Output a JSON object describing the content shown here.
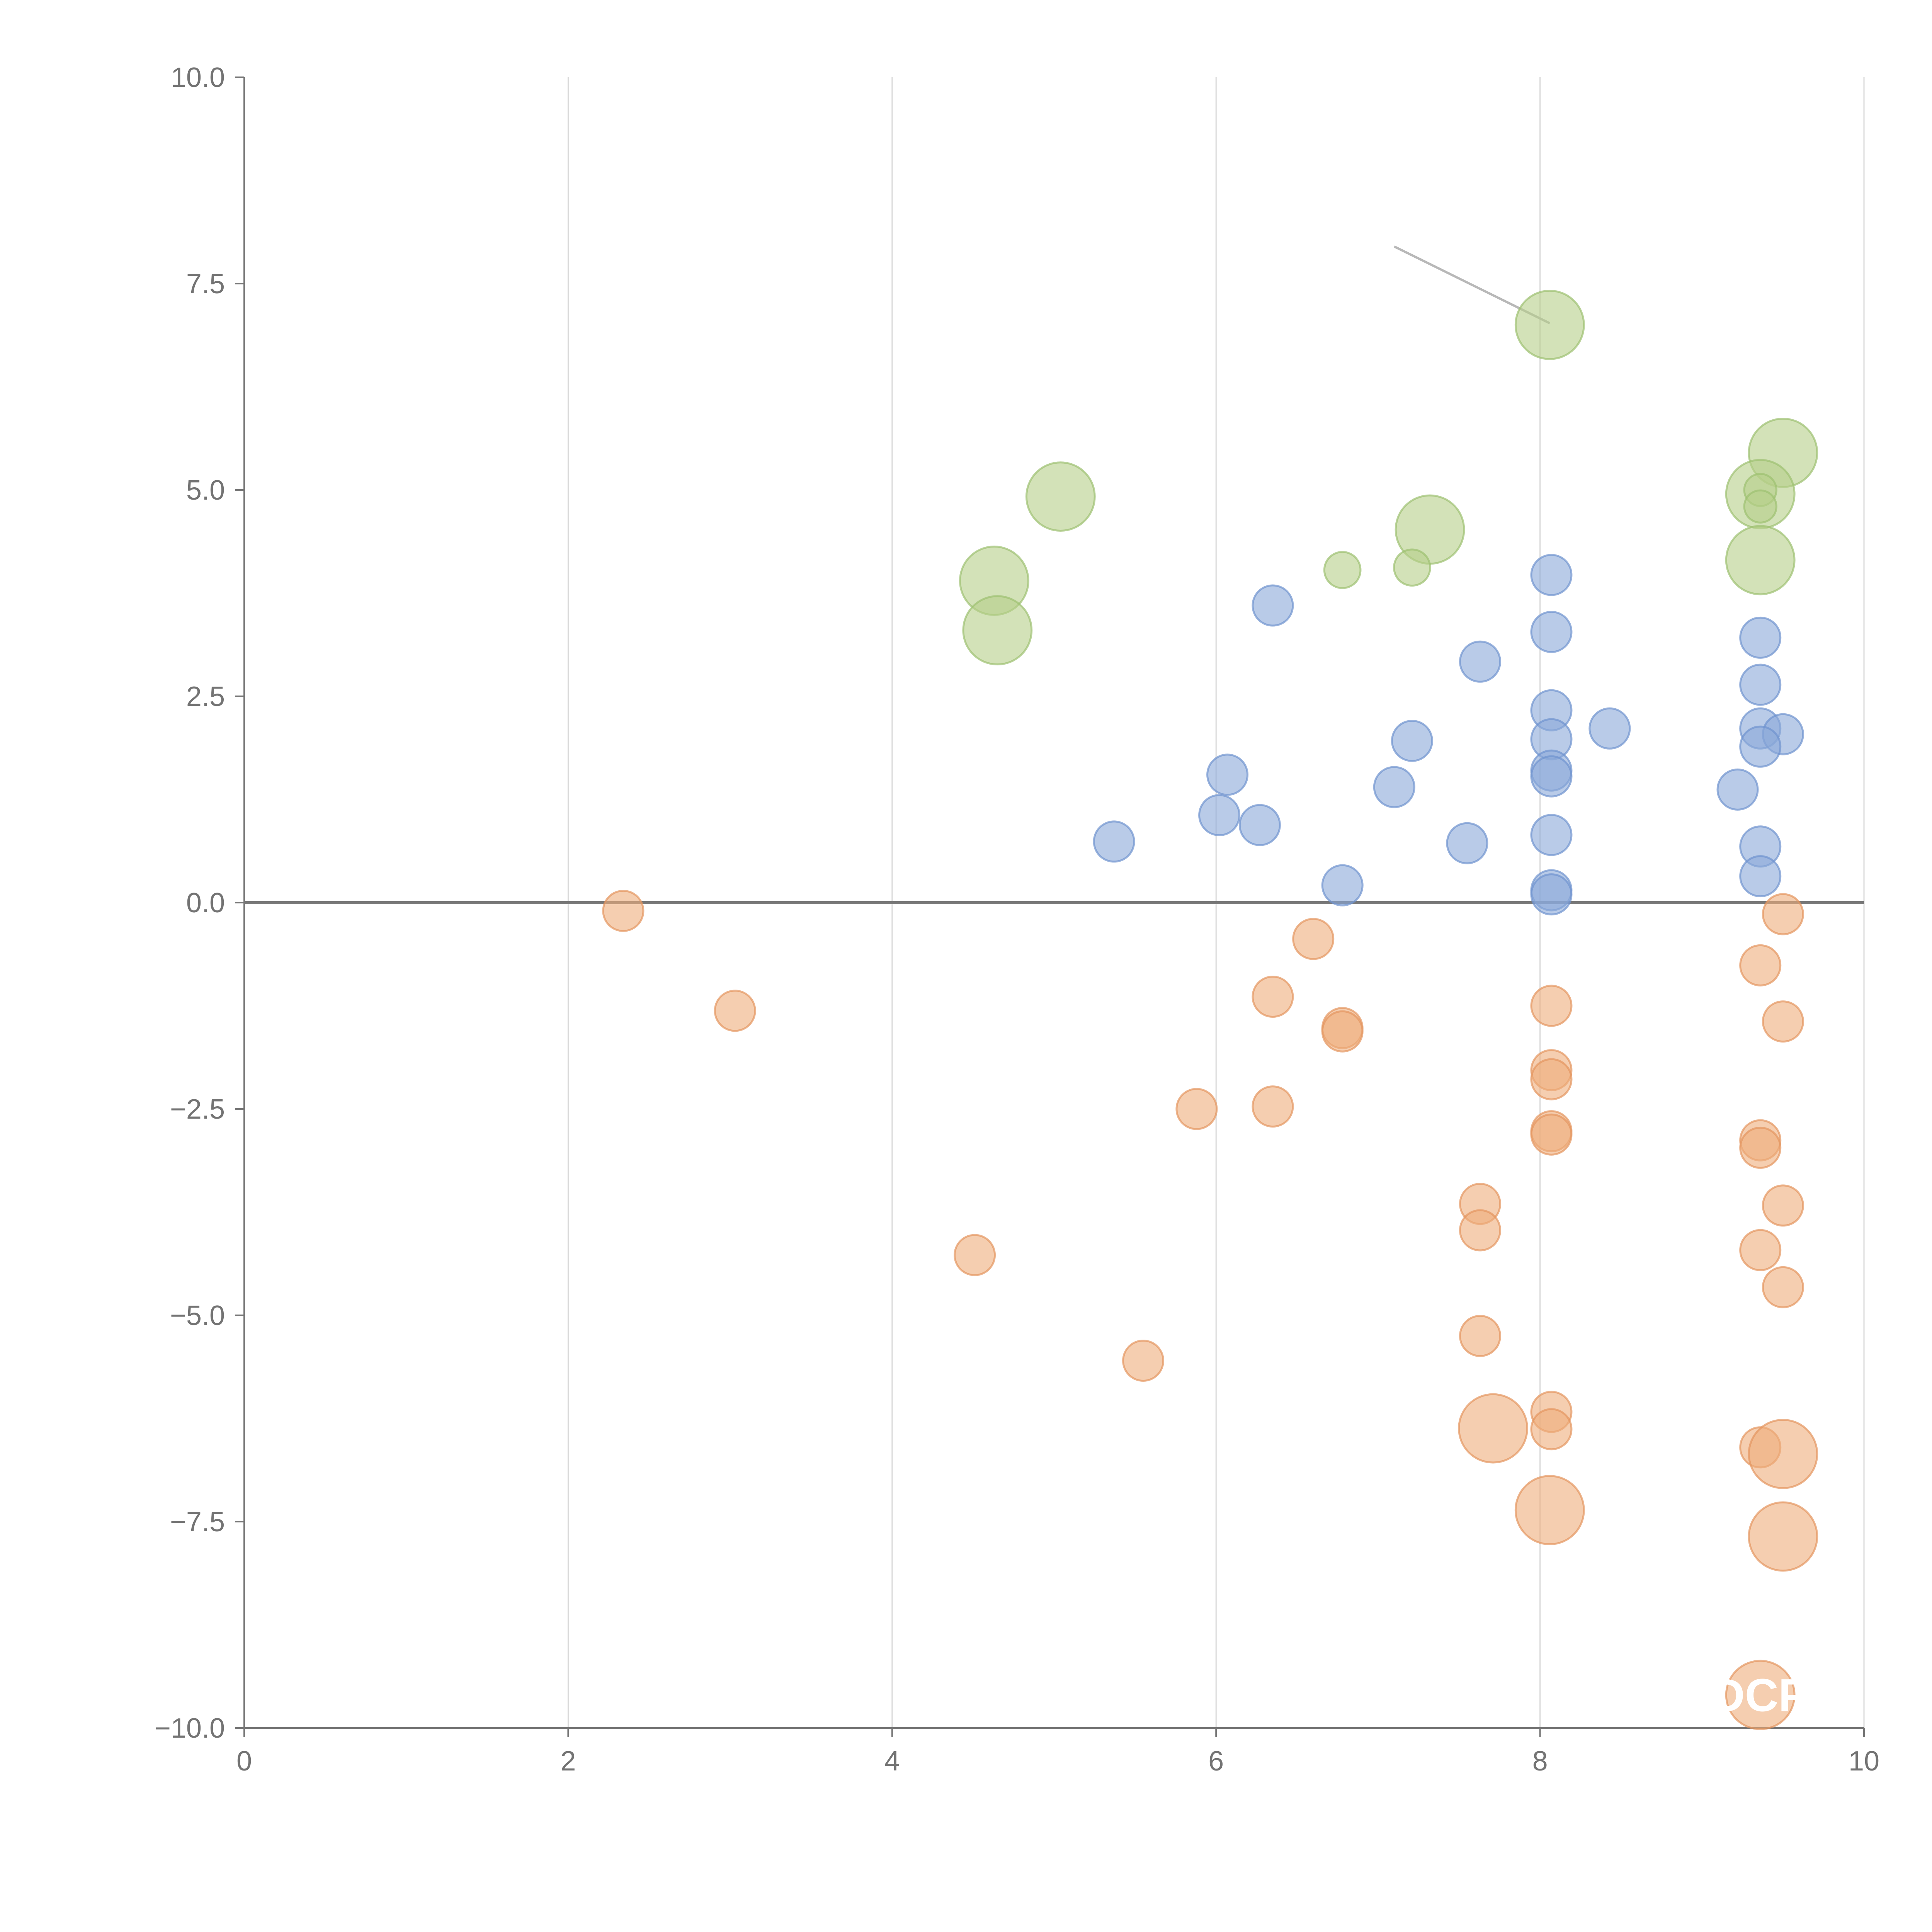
{
  "chart_data": {
    "type": "scatter",
    "title": "",
    "xlabel": "",
    "ylabel": "",
    "xlim": [
      0,
      10
    ],
    "ylim": [
      -10,
      10
    ],
    "grid": "vertical",
    "x_ticks": [
      "0",
      "2",
      "4",
      "6",
      "8",
      "10"
    ],
    "y_ticks": [
      "10.0",
      "7.5",
      "5.0",
      "2.5",
      "0.0",
      "−2.5",
      "−5.0",
      "−7.5",
      "−10.0"
    ],
    "x_tick_values": [
      0,
      2,
      4,
      6,
      8,
      10
    ],
    "y_tick_values": [
      10,
      7.5,
      5,
      2.5,
      0,
      -2.5,
      -5,
      -7.5,
      -10
    ],
    "zero_line": 0,
    "colors": {
      "green": "#b5cf88",
      "blue": "#8ba9d9",
      "orange": "#eeae7c",
      "green_stroke": "#9dc170",
      "blue_stroke": "#6f93cf",
      "orange_stroke": "#e49660"
    },
    "series": [
      {
        "name": "green",
        "color": "green",
        "points": [
          {
            "x": 8.06,
            "y": 7.0,
            "size": 1.7
          },
          {
            "x": 9.5,
            "y": 5.45,
            "size": 1.7
          },
          {
            "x": 9.36,
            "y": 4.95,
            "size": 1.7
          },
          {
            "x": 9.36,
            "y": 5.0,
            "size": 0.8
          },
          {
            "x": 9.36,
            "y": 4.8,
            "size": 0.8
          },
          {
            "x": 9.36,
            "y": 4.15,
            "size": 1.7
          },
          {
            "x": 5.04,
            "y": 4.92,
            "size": 1.7
          },
          {
            "x": 7.32,
            "y": 4.52,
            "size": 1.7
          },
          {
            "x": 4.63,
            "y": 3.9,
            "size": 1.7
          },
          {
            "x": 4.65,
            "y": 3.3,
            "size": 1.7
          },
          {
            "x": 6.78,
            "y": 4.03,
            "size": 0.9
          },
          {
            "x": 7.21,
            "y": 4.06,
            "size": 0.9
          }
        ]
      },
      {
        "name": "blue",
        "color": "blue",
        "points": [
          {
            "x": 6.35,
            "y": 3.6,
            "size": 1
          },
          {
            "x": 8.07,
            "y": 3.97,
            "size": 1
          },
          {
            "x": 8.07,
            "y": 3.28,
            "size": 1
          },
          {
            "x": 7.63,
            "y": 2.92,
            "size": 1
          },
          {
            "x": 8.07,
            "y": 2.33,
            "size": 1
          },
          {
            "x": 8.43,
            "y": 2.11,
            "size": 1
          },
          {
            "x": 7.21,
            "y": 1.96,
            "size": 1
          },
          {
            "x": 8.07,
            "y": 1.98,
            "size": 1
          },
          {
            "x": 8.07,
            "y": 1.6,
            "size": 1
          },
          {
            "x": 8.07,
            "y": 1.53,
            "size": 1
          },
          {
            "x": 6.07,
            "y": 1.55,
            "size": 1
          },
          {
            "x": 7.1,
            "y": 1.4,
            "size": 1
          },
          {
            "x": 6.02,
            "y": 1.06,
            "size": 1
          },
          {
            "x": 6.27,
            "y": 0.94,
            "size": 1
          },
          {
            "x": 5.37,
            "y": 0.74,
            "size": 1
          },
          {
            "x": 7.55,
            "y": 0.72,
            "size": 1
          },
          {
            "x": 8.07,
            "y": 0.82,
            "size": 1
          },
          {
            "x": 6.78,
            "y": 0.21,
            "size": 1
          },
          {
            "x": 8.07,
            "y": 0.15,
            "size": 1
          },
          {
            "x": 8.07,
            "y": 0.1,
            "size": 1
          },
          {
            "x": 9.36,
            "y": 3.21,
            "size": 1
          },
          {
            "x": 9.36,
            "y": 2.64,
            "size": 1
          },
          {
            "x": 9.36,
            "y": 2.11,
            "size": 1
          },
          {
            "x": 9.5,
            "y": 2.04,
            "size": 1
          },
          {
            "x": 9.36,
            "y": 1.89,
            "size": 1
          },
          {
            "x": 9.22,
            "y": 1.37,
            "size": 1
          },
          {
            "x": 9.36,
            "y": 0.68,
            "size": 1
          },
          {
            "x": 9.36,
            "y": 0.32,
            "size": 1
          }
        ]
      },
      {
        "name": "orange",
        "color": "orange",
        "points": [
          {
            "x": 2.34,
            "y": -0.1,
            "size": 1
          },
          {
            "x": 3.03,
            "y": -1.31,
            "size": 1
          },
          {
            "x": 6.6,
            "y": -0.44,
            "size": 1
          },
          {
            "x": 6.35,
            "y": -1.14,
            "size": 1
          },
          {
            "x": 6.78,
            "y": -1.52,
            "size": 1
          },
          {
            "x": 6.78,
            "y": -1.56,
            "size": 1
          },
          {
            "x": 5.88,
            "y": -2.5,
            "size": 1
          },
          {
            "x": 6.35,
            "y": -2.47,
            "size": 1
          },
          {
            "x": 4.51,
            "y": -4.27,
            "size": 1
          },
          {
            "x": 5.55,
            "y": -5.55,
            "size": 1
          },
          {
            "x": 8.07,
            "y": -1.25,
            "size": 1
          },
          {
            "x": 8.07,
            "y": -2.03,
            "size": 1
          },
          {
            "x": 8.07,
            "y": -2.14,
            "size": 1
          },
          {
            "x": 8.07,
            "y": -2.77,
            "size": 1
          },
          {
            "x": 8.07,
            "y": -2.81,
            "size": 1
          },
          {
            "x": 7.63,
            "y": -3.65,
            "size": 1
          },
          {
            "x": 7.63,
            "y": -3.97,
            "size": 1
          },
          {
            "x": 7.63,
            "y": -5.25,
            "size": 1
          },
          {
            "x": 8.07,
            "y": -6.17,
            "size": 1
          },
          {
            "x": 8.07,
            "y": -6.38,
            "size": 1
          },
          {
            "x": 7.71,
            "y": -6.37,
            "size": 1.7
          },
          {
            "x": 8.06,
            "y": -7.36,
            "size": 1.7
          },
          {
            "x": 9.5,
            "y": -0.14,
            "size": 1
          },
          {
            "x": 9.36,
            "y": -0.76,
            "size": 1
          },
          {
            "x": 9.5,
            "y": -1.44,
            "size": 1
          },
          {
            "x": 9.36,
            "y": -2.88,
            "size": 1
          },
          {
            "x": 9.36,
            "y": -2.97,
            "size": 1
          },
          {
            "x": 9.5,
            "y": -3.67,
            "size": 1
          },
          {
            "x": 9.36,
            "y": -4.21,
            "size": 1
          },
          {
            "x": 9.5,
            "y": -4.66,
            "size": 1
          },
          {
            "x": 9.36,
            "y": -6.6,
            "size": 1
          },
          {
            "x": 9.5,
            "y": -6.68,
            "size": 1.7
          },
          {
            "x": 9.5,
            "y": -7.68,
            "size": 1.7
          },
          {
            "x": 9.36,
            "y": -9.6,
            "size": 1.7
          }
        ]
      }
    ],
    "annotation_line": {
      "x1": 7.1,
      "y1": 7.95,
      "x2": 8.06,
      "y2": 7.02
    },
    "annotations": [
      {
        "text": "DCP",
        "x": 9.36,
        "y": -9.6
      }
    ]
  }
}
